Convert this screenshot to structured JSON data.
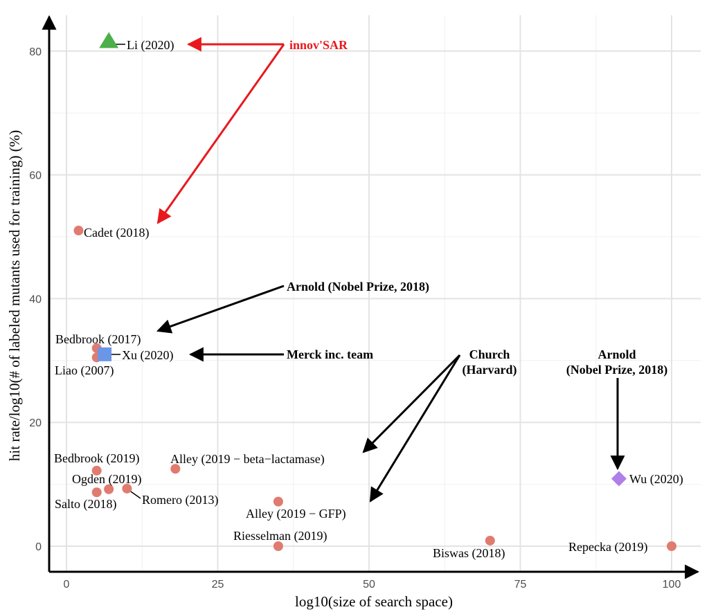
{
  "chart_data": {
    "type": "scatter",
    "title": "",
    "xlabel": "log10(size of search space)",
    "ylabel": "hit rate/log10(# of labeled mutants used for training) (%)",
    "xlim": [
      -2,
      104
    ],
    "ylim": [
      -4,
      86
    ],
    "xticks": [
      0,
      25,
      50,
      75,
      100
    ],
    "yticks": [
      0,
      20,
      40,
      60,
      80
    ],
    "grid": true,
    "legend": "none",
    "points": [
      {
        "label": "Li (2020)",
        "x": 7,
        "y": 81.5,
        "shape": "triangle",
        "color": "#4daf4a"
      },
      {
        "label": "Cadet (2018)",
        "x": 2,
        "y": 51,
        "shape": "circle",
        "color": "#e07b6f"
      },
      {
        "label": "Bedbrook (2017)",
        "x": 5,
        "y": 32,
        "shape": "circle",
        "color": "#e07b6f"
      },
      {
        "label": "Liao (2007)",
        "x": 5,
        "y": 30.5,
        "shape": "circle",
        "color": "#e07b6f"
      },
      {
        "label": "Xu (2020)",
        "x": 6.3,
        "y": 31,
        "shape": "square",
        "color": "#6b96e8"
      },
      {
        "label": "Bedbrook (2019)",
        "x": 5,
        "y": 12.2,
        "shape": "circle",
        "color": "#e07b6f"
      },
      {
        "label": "Ogden (2019)",
        "x": 7,
        "y": 9.2,
        "shape": "circle",
        "color": "#e07b6f"
      },
      {
        "label": "Salto (2018)",
        "x": 5,
        "y": 8.7,
        "shape": "circle",
        "color": "#e07b6f"
      },
      {
        "label": "Romero (2013)",
        "x": 10,
        "y": 9.3,
        "shape": "circle",
        "color": "#e07b6f"
      },
      {
        "label": "Alley (2019 − beta−lactamase)",
        "x": 18,
        "y": 12.5,
        "shape": "circle",
        "color": "#e07b6f"
      },
      {
        "label": "Alley (2019 − GFP)",
        "x": 35,
        "y": 7.2,
        "shape": "circle",
        "color": "#e07b6f"
      },
      {
        "label": "Riesselman (2019)",
        "x": 35,
        "y": 0,
        "shape": "circle",
        "color": "#e07b6f"
      },
      {
        "label": "Biswas (2018)",
        "x": 70,
        "y": 0.9,
        "shape": "circle",
        "color": "#e07b6f"
      },
      {
        "label": "Repecka (2019)",
        "x": 100,
        "y": 0,
        "shape": "circle",
        "color": "#e07b6f"
      },
      {
        "label": "Wu (2020)",
        "x": 91.3,
        "y": 10.9,
        "shape": "diamond",
        "color": "#b07fe8"
      }
    ],
    "annotations": [
      {
        "text": "innov'SAR",
        "color": "#e8191d"
      },
      {
        "text": "Arnold (Nobel Prize, 2018)",
        "color": "#000000"
      },
      {
        "text": "Merck inc. team",
        "color": "#000000"
      },
      {
        "text": "Church",
        "color": "#000000"
      },
      {
        "text": "(Harvard)",
        "color": "#000000"
      },
      {
        "text": "Arnold",
        "color": "#000000"
      },
      {
        "text": "(Nobel Prize, 2018)",
        "color": "#000000"
      }
    ]
  }
}
